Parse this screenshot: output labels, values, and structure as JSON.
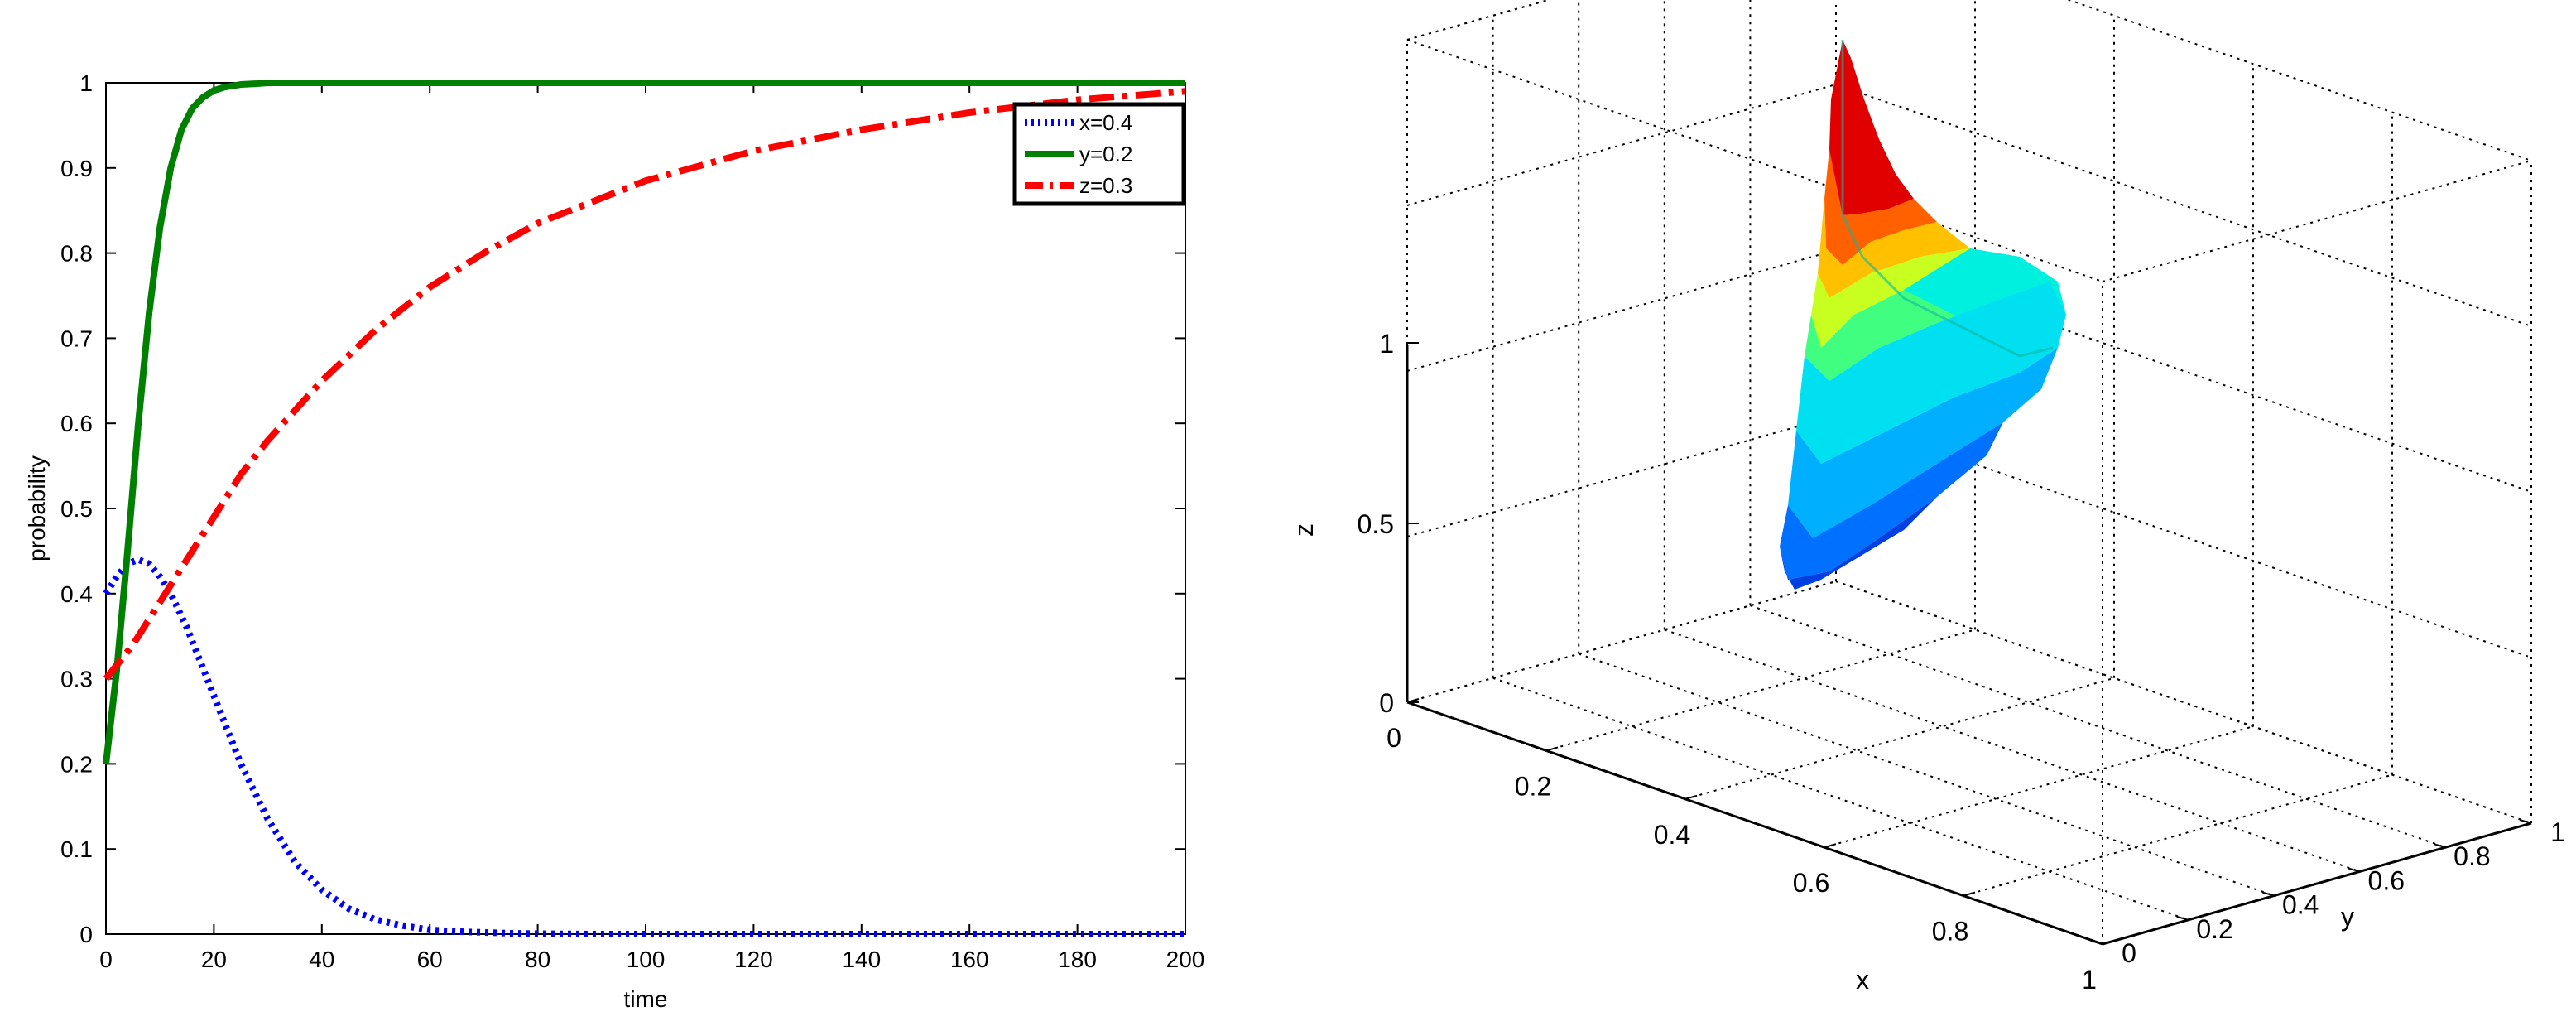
{
  "chart_data": [
    {
      "type": "line",
      "xlabel": "time",
      "ylabel": "probability",
      "xlim": [
        0,
        200
      ],
      "ylim": [
        0,
        1
      ],
      "xticks": [
        0,
        20,
        40,
        60,
        80,
        100,
        120,
        140,
        160,
        180,
        200
      ],
      "yticks": [
        0,
        0.1,
        0.2,
        0.3,
        0.4,
        0.5,
        0.6,
        0.7,
        0.8,
        0.9,
        1
      ],
      "grid": false,
      "legend": "top-right",
      "series": [
        {
          "name": "x=0.4",
          "color": "#0000ff",
          "style": "dotted",
          "x": [
            0,
            2,
            4,
            6,
            8,
            10,
            12,
            15,
            20,
            25,
            30,
            35,
            40,
            45,
            50,
            55,
            60,
            65,
            70,
            75,
            80,
            90,
            100,
            120,
            140,
            160,
            180,
            200
          ],
          "y": [
            0.4,
            0.42,
            0.435,
            0.44,
            0.435,
            0.42,
            0.4,
            0.36,
            0.28,
            0.2,
            0.135,
            0.085,
            0.052,
            0.03,
            0.017,
            0.01,
            0.005,
            0.003,
            0.002,
            0.001,
            0.0005,
            0,
            0,
            0,
            0,
            0,
            0,
            0
          ]
        },
        {
          "name": "y=0.2",
          "color": "#008000",
          "style": "solid",
          "x": [
            0,
            2,
            4,
            6,
            8,
            10,
            12,
            14,
            16,
            18,
            20,
            22,
            25,
            28,
            30,
            35,
            40,
            60,
            80,
            100,
            120,
            140,
            160,
            180,
            200
          ],
          "y": [
            0.2,
            0.31,
            0.45,
            0.6,
            0.73,
            0.83,
            0.9,
            0.945,
            0.97,
            0.983,
            0.991,
            0.995,
            0.998,
            0.999,
            1.0,
            1.0,
            1.0,
            1.0,
            1.0,
            1.0,
            1.0,
            1.0,
            1.0,
            1.0,
            1.0
          ]
        },
        {
          "name": "z=0.3",
          "color": "#ff0000",
          "style": "dashdot",
          "x": [
            0,
            5,
            10,
            15,
            20,
            25,
            30,
            40,
            50,
            60,
            70,
            80,
            90,
            100,
            120,
            140,
            160,
            180,
            200
          ],
          "y": [
            0.3,
            0.34,
            0.39,
            0.44,
            0.49,
            0.54,
            0.58,
            0.65,
            0.71,
            0.76,
            0.8,
            0.835,
            0.86,
            0.885,
            0.92,
            0.945,
            0.965,
            0.98,
            0.99
          ]
        }
      ]
    },
    {
      "type": "surface3d",
      "xlabel": "x",
      "ylabel": "y",
      "zlabel": "z",
      "xlim": [
        0,
        1
      ],
      "ylim": [
        0,
        1
      ],
      "zlim": [
        0,
        1
      ],
      "xticks": [
        "0",
        "0.2",
        "0.4",
        "0.6",
        "0.8",
        "1"
      ],
      "yticks": [
        "0",
        "0.2",
        "0.4",
        "0.6",
        "0.8",
        "1"
      ],
      "zticks": [
        "0",
        "0.5",
        "1"
      ],
      "grid": true,
      "colormap": "jet"
    }
  ]
}
